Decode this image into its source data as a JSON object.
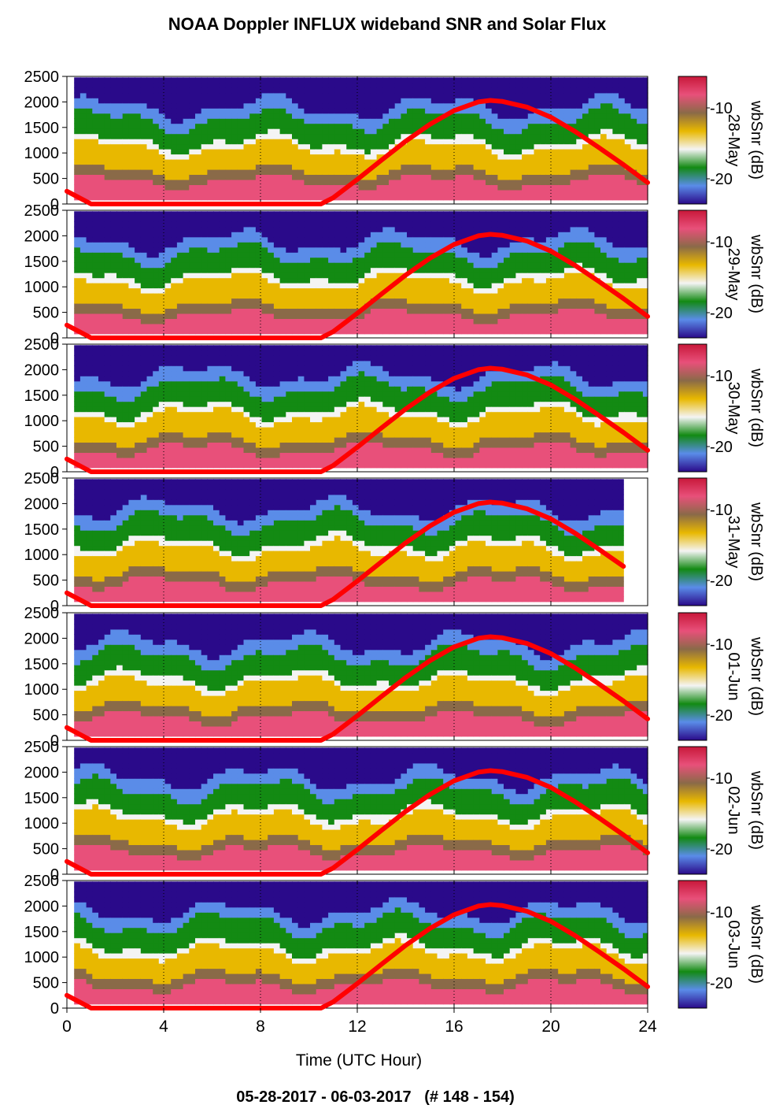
{
  "chart_data": {
    "type": "heatmap",
    "title": "NOAA Doppler INFLUX wideband SNR and Solar Flux",
    "subtitle": "05-28-2017 - 06-03-2017   (# 148 - 154)",
    "xlabel": "Time (UTC Hour)",
    "xlim": [
      0,
      24
    ],
    "x_ticks": [
      "0",
      "4",
      "8",
      "12",
      "16",
      "20",
      "24"
    ],
    "y_ticks": [
      "0",
      "500",
      "1000",
      "1500",
      "2000",
      "2500"
    ],
    "ylim": [
      0,
      2500
    ],
    "grid": "dotted vertical lines",
    "colorbar": {
      "label": "wbSnr (dB)",
      "tick_labels": [
        "-10",
        "-20"
      ],
      "colors": [
        "#2a0a8a",
        "#5a8ce8",
        "#138a13",
        "#f4f4f4",
        "#e8b800",
        "#8a6a48",
        "#e8507a",
        "#c8183a"
      ]
    },
    "series_color": "#ff0000",
    "panels": [
      {
        "date": "28-May",
        "data_end_hour": 24,
        "curve_end_hour": 24
      },
      {
        "date": "29-May",
        "data_end_hour": 24,
        "curve_end_hour": 24
      },
      {
        "date": "30-May",
        "data_end_hour": 24,
        "curve_end_hour": 24
      },
      {
        "date": "31-May",
        "data_end_hour": 23,
        "curve_end_hour": 23
      },
      {
        "date": "01-Jun",
        "data_end_hour": 24,
        "curve_end_hour": 24
      },
      {
        "date": "02-Jun",
        "data_end_hour": 24,
        "curve_end_hour": 24
      },
      {
        "date": "03-Jun",
        "data_end_hour": 24,
        "curve_end_hour": 24
      }
    ],
    "solar_flux_curve": {
      "x": [
        0,
        1,
        2,
        3,
        4,
        5,
        6,
        7,
        8,
        9,
        10,
        10.5,
        11,
        12,
        13,
        14,
        15,
        16,
        17,
        17.5,
        18,
        19,
        20,
        21,
        22,
        23,
        24
      ],
      "y": [
        250,
        0,
        0,
        0,
        0,
        0,
        0,
        0,
        0,
        0,
        0,
        0,
        120,
        480,
        860,
        1230,
        1560,
        1830,
        2000,
        2030,
        2010,
        1900,
        1700,
        1420,
        1100,
        770,
        420
      ]
    }
  }
}
